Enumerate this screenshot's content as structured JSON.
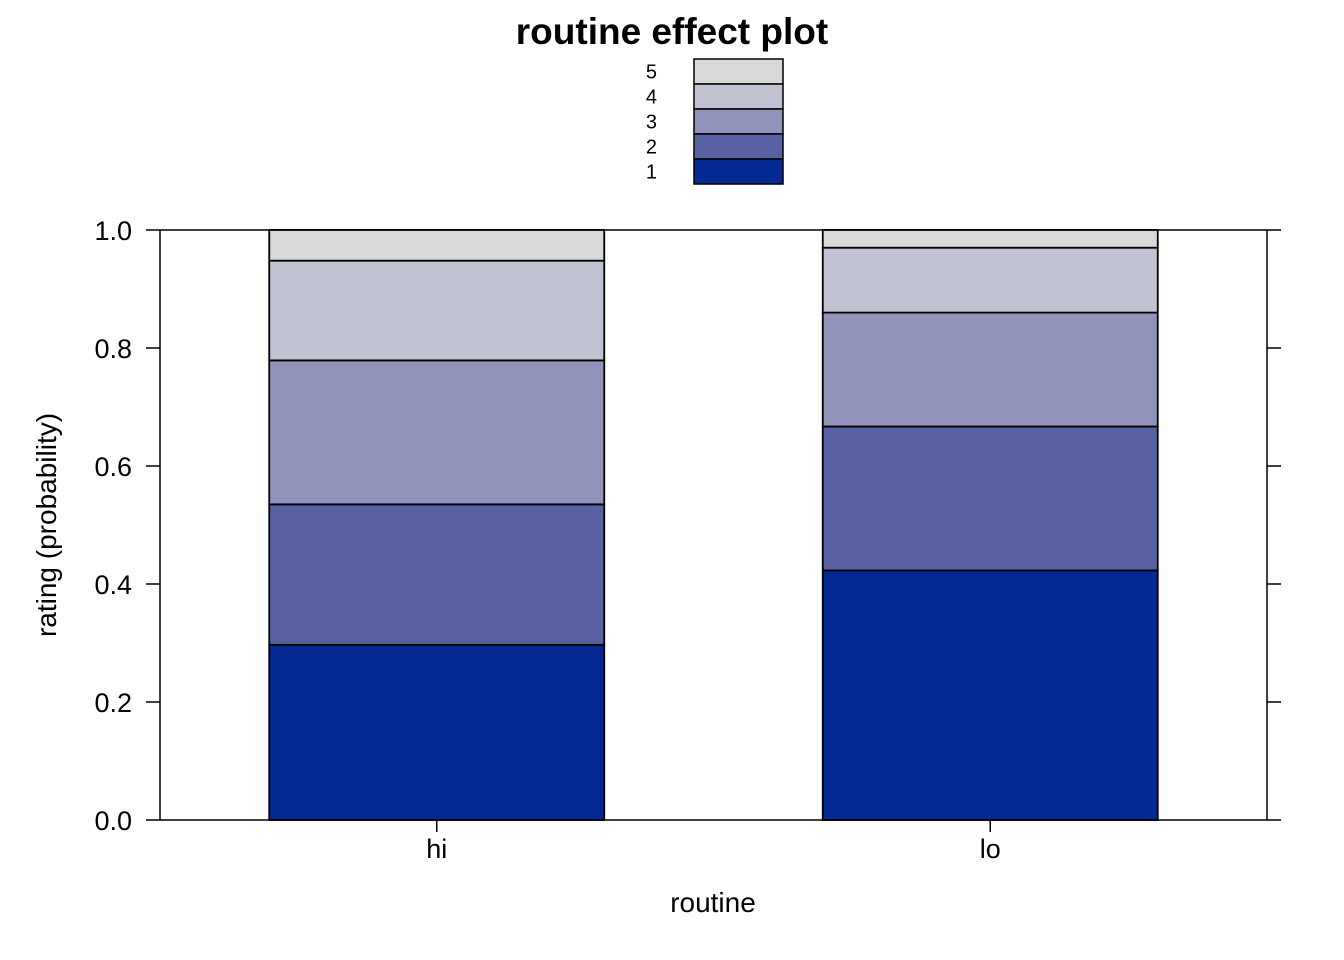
{
  "chart_data": {
    "type": "bar",
    "stacked": true,
    "title": "routine effect plot",
    "xlabel": "routine",
    "ylabel": "rating (probability)",
    "categories": [
      "hi",
      "lo"
    ],
    "ylim": [
      0,
      1
    ],
    "yticks": [
      "0.0",
      "0.2",
      "0.4",
      "0.6",
      "0.8",
      "1.0"
    ],
    "grid": false,
    "legend_position": "top-center",
    "series": [
      {
        "name": "1",
        "color": "#052993",
        "values": [
          0.297,
          0.423
        ]
      },
      {
        "name": "2",
        "color": "#5861a2",
        "values": [
          0.238,
          0.244
        ]
      },
      {
        "name": "3",
        "color": "#9293bb",
        "values": [
          0.244,
          0.193
        ]
      },
      {
        "name": "4",
        "color": "#c0c2d1",
        "values": [
          0.169,
          0.11
        ]
      },
      {
        "name": "5",
        "color": "#d9d9d9",
        "values": [
          0.052,
          0.03
        ]
      }
    ]
  }
}
